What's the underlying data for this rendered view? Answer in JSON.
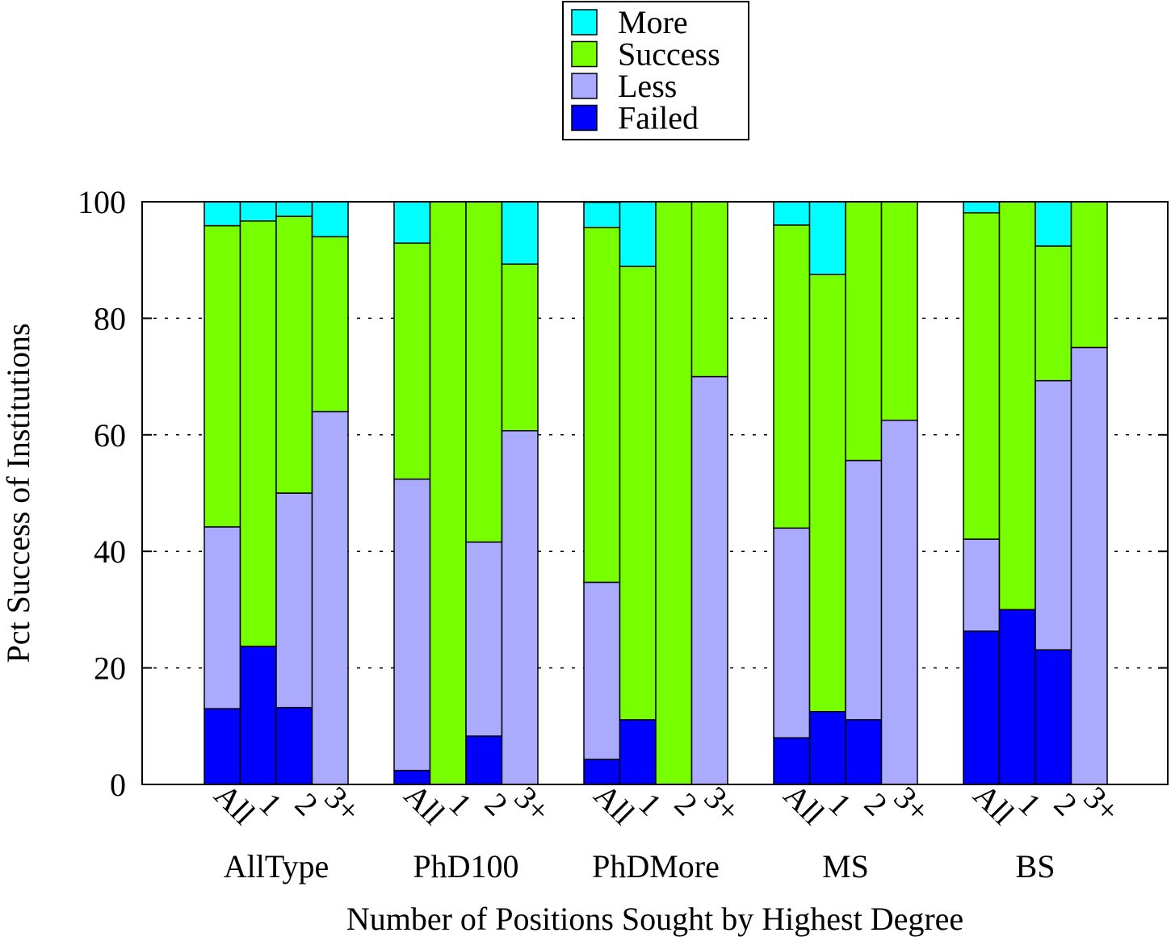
{
  "chart_data": {
    "type": "bar",
    "stacked": true,
    "title": "",
    "xlabel": "Number of Positions Sought by Highest Degree",
    "ylabel": "Pct Success of Institutions",
    "ylim": [
      0,
      100
    ],
    "yticks": [
      "0",
      "20",
      "40",
      "60",
      "80",
      "100"
    ],
    "grid": "horizontal dotted",
    "legend_position": "top-center",
    "groups": [
      "AllType",
      "PhD100",
      "PhDMore",
      "MS",
      "BS"
    ],
    "categories": [
      "All",
      "1",
      "2",
      "3+"
    ],
    "series": [
      {
        "name": "Failed",
        "color": "#0000ff",
        "values": [
          [
            13.0,
            23.7,
            13.2,
            0
          ],
          [
            2.4,
            0,
            8.3,
            0
          ],
          [
            4.3,
            11.1,
            0,
            0
          ],
          [
            8.0,
            12.5,
            11.1,
            0
          ],
          [
            26.3,
            30.0,
            23.1,
            0
          ]
        ]
      },
      {
        "name": "Less",
        "color": "#aaaaff",
        "values": [
          [
            31.2,
            0,
            36.8,
            64.0
          ],
          [
            50.0,
            0,
            33.3,
            60.7
          ],
          [
            30.4,
            0,
            0,
            70.0
          ],
          [
            36.0,
            0,
            44.5,
            62.5
          ],
          [
            15.8,
            0,
            46.2,
            75.0
          ]
        ]
      },
      {
        "name": "Success",
        "color": "#77ff00",
        "values": [
          [
            51.7,
            73.0,
            47.5,
            30.0
          ],
          [
            40.5,
            100.0,
            58.4,
            28.6
          ],
          [
            60.9,
            77.8,
            100.0,
            30.0
          ],
          [
            52.0,
            75.0,
            44.4,
            37.5
          ],
          [
            56.0,
            70.0,
            23.1,
            25.0
          ]
        ]
      },
      {
        "name": "More",
        "color": "#00ffff",
        "values": [
          [
            4.1,
            3.3,
            2.5,
            6.0
          ],
          [
            7.1,
            0,
            0,
            10.7
          ],
          [
            4.3,
            11.1,
            0,
            0
          ],
          [
            4.0,
            12.5,
            0,
            0
          ],
          [
            1.9,
            0,
            7.6,
            0
          ]
        ]
      }
    ],
    "legend_order": [
      "More",
      "Success",
      "Less",
      "Failed"
    ]
  }
}
